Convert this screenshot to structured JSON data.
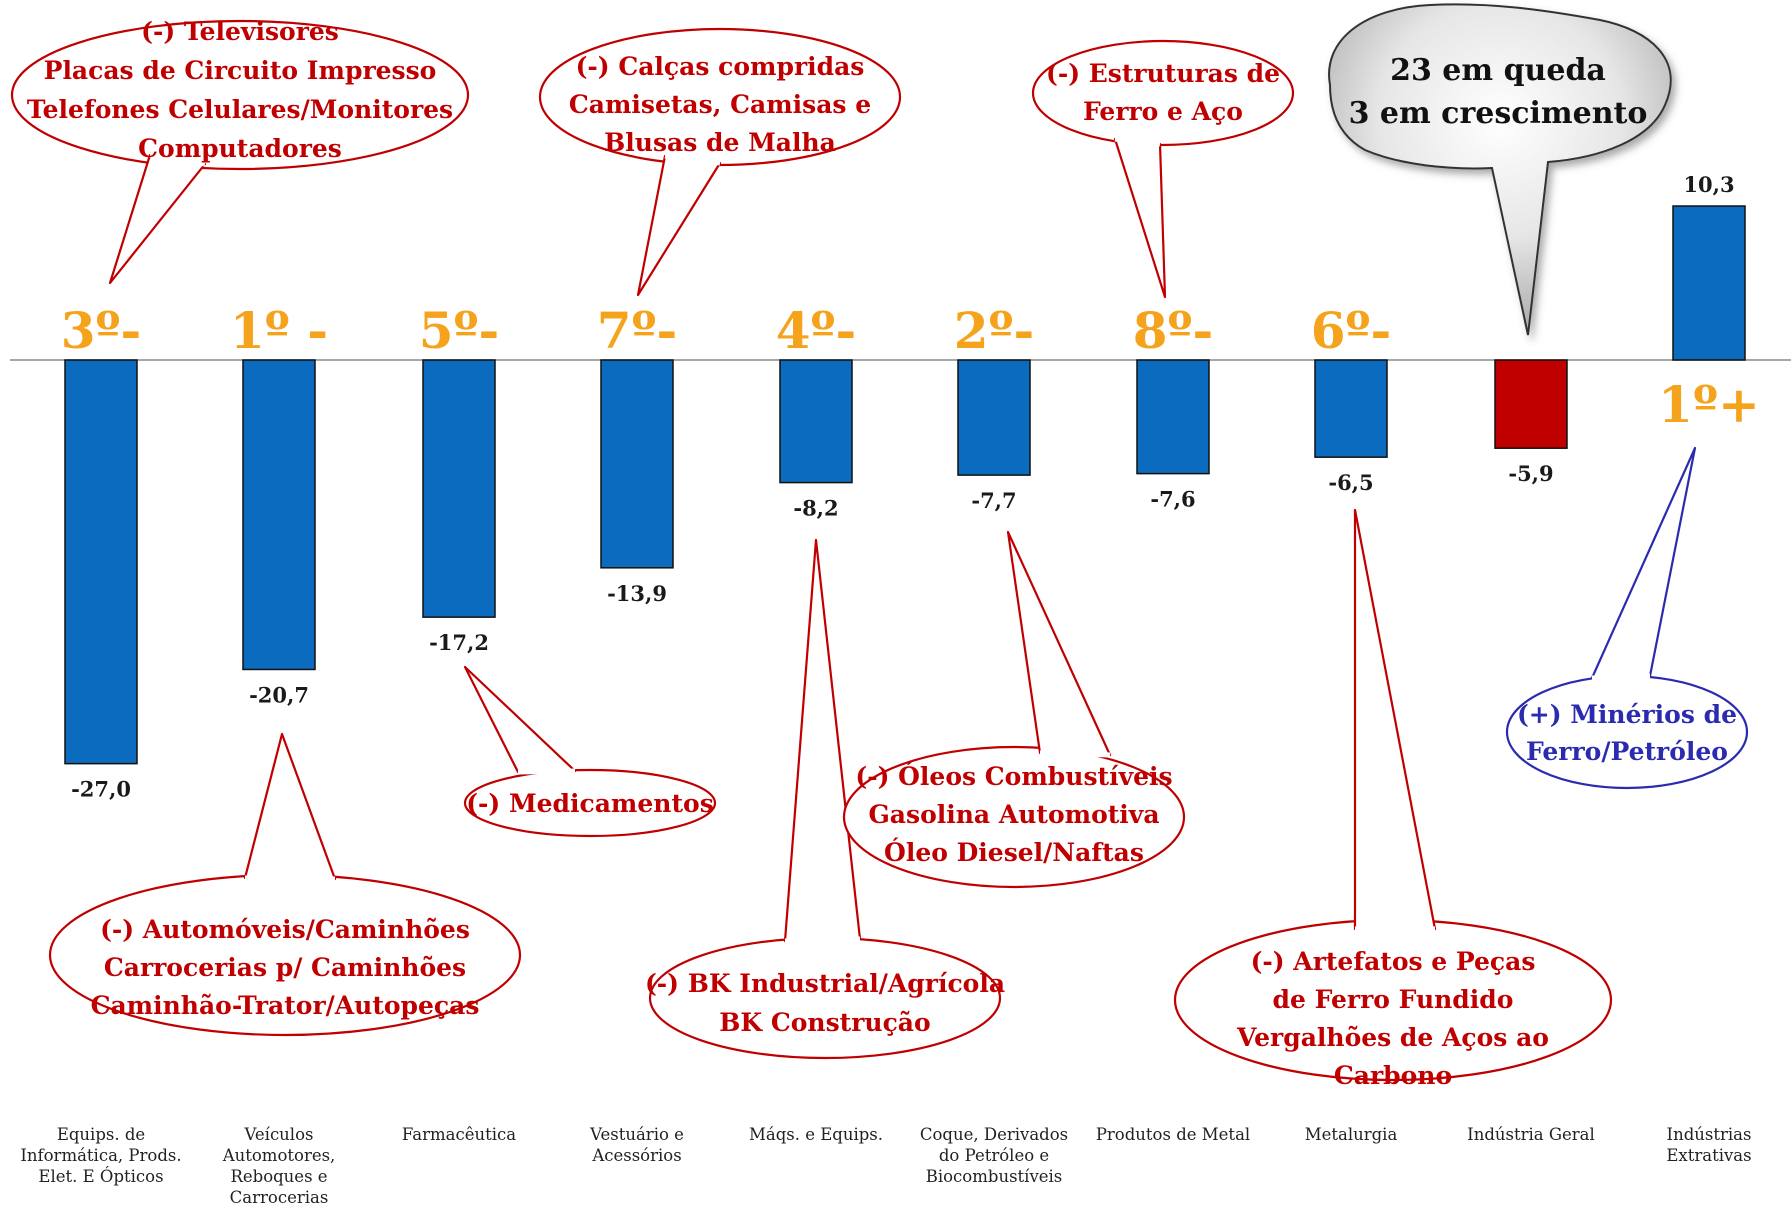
{
  "chart_data": {
    "type": "bar",
    "categories": [
      "Equips. de Informática, Prods. Elet. E Ópticos",
      "Veículos Automotores, Reboques e Carrocerias",
      "Farmacêutica",
      "Vestuário e Acessórios",
      "Máqs. e Equips.",
      "Coque, Derivados do Petróleo e Biocombustíveis",
      "Produtos de Metal",
      "Metalurgia",
      "Indústria Geral",
      "Indústrias Extrativas"
    ],
    "category_lines": [
      [
        "Equips. de",
        "Informática, Prods.",
        "Elet. E Ópticos"
      ],
      [
        "Veículos",
        "Automotores,",
        "Reboques e",
        "Carrocerias"
      ],
      [
        "Farmacêutica"
      ],
      [
        "Vestuário e",
        "Acessórios"
      ],
      [
        "Máqs. e Equips."
      ],
      [
        "Coque, Derivados",
        "do Petróleo e",
        "Biocombustíveis"
      ],
      [
        "Produtos de Metal"
      ],
      [
        "Metalurgia"
      ],
      [
        "Indústria Geral"
      ],
      [
        "Indústrias",
        "Extrativas"
      ]
    ],
    "values": [
      -27.0,
      -20.7,
      -17.2,
      -13.9,
      -8.2,
      -7.7,
      -7.6,
      -6.5,
      -5.9,
      10.3
    ],
    "value_labels": [
      "-27,0",
      "-20,7",
      "-17,2",
      "-13,9",
      "-8,2",
      "-7,7",
      "-7,6",
      "-6,5",
      "-5,9",
      "10,3"
    ],
    "bar_colors": [
      "#0a6bbf",
      "#0a6bbf",
      "#0a6bbf",
      "#0a6bbf",
      "#0a6bbf",
      "#0a6bbf",
      "#0a6bbf",
      "#0a6bbf",
      "#c00000",
      "#0a6bbf"
    ],
    "rank_labels": [
      "3º-",
      "1º -",
      "5º-",
      "7º-",
      "4º-",
      "2º-",
      "8º-",
      "6º-",
      "",
      "1º+"
    ],
    "grid": false,
    "legend": "none"
  },
  "callouts": [
    {
      "lines": [
        "(-)  Televisores",
        "Placas de Circuito Impresso",
        "Telefones Celulares/Monitores",
        "Computadores"
      ],
      "color": "#c00000"
    },
    {
      "lines": [
        "(-) Calças compridas",
        "Camisetas, Camisas e",
        "Blusas de Malha"
      ],
      "color": "#c00000"
    },
    {
      "lines": [
        "(-)  Estruturas de",
        "Ferro e Aço"
      ],
      "color": "#c00000"
    },
    {
      "lines": [
        "(-) Medicamentos"
      ],
      "color": "#c00000"
    },
    {
      "lines": [
        "(-) Automóveis/Caminhões",
        "Carrocerias p/ Caminhões",
        "Caminhão-Trator/Autopeças"
      ],
      "color": "#c00000"
    },
    {
      "lines": [
        "(-) BK Industrial/Agrícola",
        "BK Construção"
      ],
      "color": "#c00000"
    },
    {
      "lines": [
        "(-) Óleos Combustíveis",
        "Gasolina Automotiva",
        "Óleo Diesel/Naftas"
      ],
      "color": "#c00000"
    },
    {
      "lines": [
        "(-) Artefatos e Peças",
        "de Ferro Fundido",
        "Vergalhões de Aços ao",
        "Carbono"
      ],
      "color": "#c00000"
    },
    {
      "lines": [
        "(+) Minérios de",
        "Ferro/Petróleo"
      ],
      "color": "#2b2bb0"
    }
  ],
  "summary": {
    "lines": [
      "23 em queda",
      "3 em crescimento"
    ]
  },
  "colors": {
    "bar": "#0a6bbf",
    "highlight_bar": "#c00000",
    "rank": "#f5a31c",
    "negative_callout": "#c00000",
    "positive_callout": "#2b2bb0"
  }
}
